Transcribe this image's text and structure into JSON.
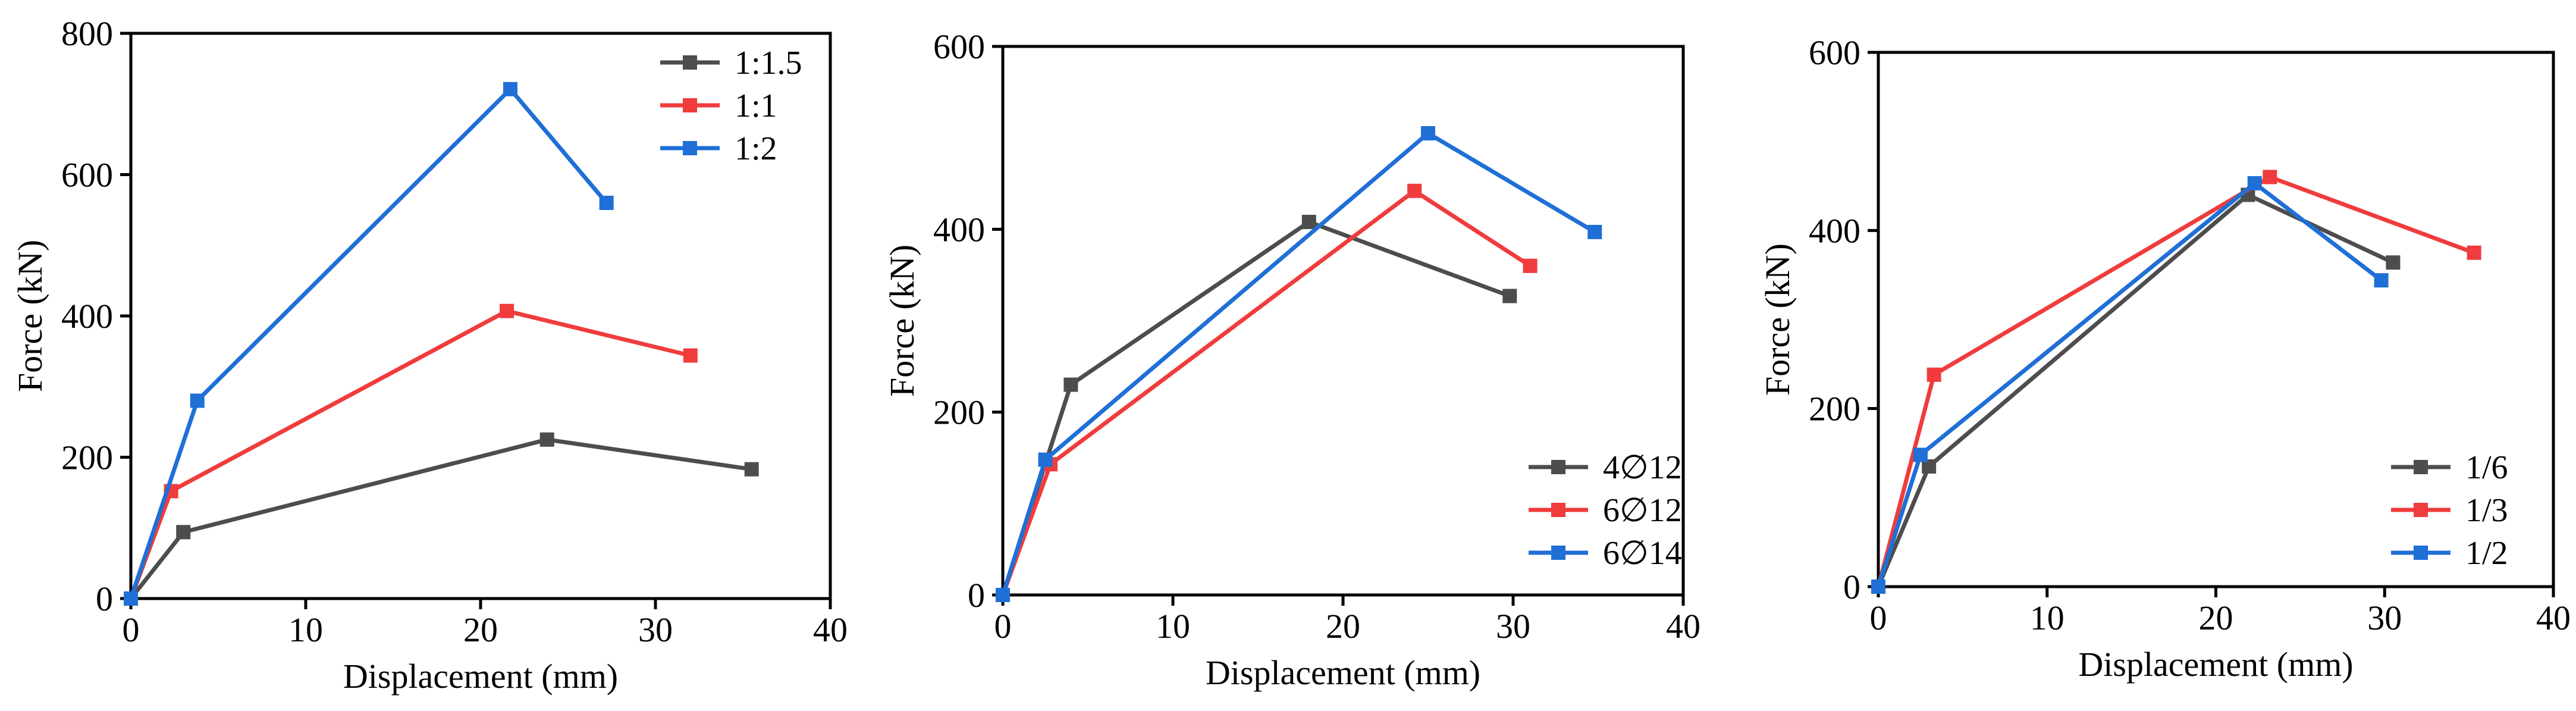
{
  "chart_data": [
    {
      "type": "line",
      "title": "",
      "xlabel": "Displacement (mm)",
      "ylabel": "Force (kN)",
      "xlim": [
        0,
        40
      ],
      "ylim": [
        0,
        800
      ],
      "xticks": [
        "0",
        "10",
        "20",
        "30",
        "40"
      ],
      "yticks": [
        "0",
        "200",
        "400",
        "600",
        "800"
      ],
      "legend_position": "top-right",
      "series": [
        {
          "name": "1:1.5",
          "color": "#4d4d4d",
          "points": [
            [
              0,
              0
            ],
            [
              3.0,
              94
            ],
            [
              23.8,
              225
            ],
            [
              35.5,
              183
            ]
          ]
        },
        {
          "name": "1:1",
          "color": "#f03c3c",
          "points": [
            [
              0,
              0
            ],
            [
              2.3,
              152
            ],
            [
              21.5,
              407
            ],
            [
              32.0,
              344
            ]
          ]
        },
        {
          "name": "1:2",
          "color": "#1f6fd6",
          "points": [
            [
              0,
              0
            ],
            [
              3.8,
              280
            ],
            [
              21.7,
              721
            ],
            [
              27.2,
              560
            ]
          ]
        }
      ]
    },
    {
      "type": "line",
      "title": "",
      "xlabel": "Displacement (mm)",
      "ylabel": "Force (kN)",
      "xlim": [
        0,
        40
      ],
      "ylim": [
        0,
        600
      ],
      "xticks": [
        "0",
        "10",
        "20",
        "30",
        "40"
      ],
      "yticks": [
        "0",
        "200",
        "400",
        "600"
      ],
      "legend_position": "bottom-right",
      "series": [
        {
          "name": "4∅12",
          "color": "#4d4d4d",
          "points": [
            [
              0,
              0
            ],
            [
              4.0,
              230
            ],
            [
              18.0,
              408
            ],
            [
              29.8,
              327
            ]
          ]
        },
        {
          "name": "6∅12",
          "color": "#f03c3c",
          "points": [
            [
              0,
              0
            ],
            [
              2.8,
              143
            ],
            [
              24.2,
              442
            ],
            [
              31.0,
              360
            ]
          ]
        },
        {
          "name": "6∅14",
          "color": "#1f6fd6",
          "points": [
            [
              0,
              0
            ],
            [
              2.5,
              148
            ],
            [
              25.0,
              505
            ],
            [
              34.8,
              397
            ]
          ]
        }
      ]
    },
    {
      "type": "line",
      "title": "",
      "xlabel": "Displacement (mm)",
      "ylabel": "Force (kN)",
      "xlim": [
        0,
        40
      ],
      "ylim": [
        0,
        600
      ],
      "xticks": [
        "0",
        "10",
        "20",
        "30",
        "40"
      ],
      "yticks": [
        "0",
        "200",
        "400",
        "600"
      ],
      "legend_position": "bottom-right",
      "series": [
        {
          "name": "1/6",
          "color": "#4d4d4d",
          "points": [
            [
              0,
              0
            ],
            [
              3.0,
              135
            ],
            [
              21.9,
              440
            ],
            [
              30.5,
              364
            ]
          ]
        },
        {
          "name": "1/3",
          "color": "#f03c3c",
          "points": [
            [
              0,
              0
            ],
            [
              3.3,
              238
            ],
            [
              23.2,
              460
            ],
            [
              35.3,
              375
            ]
          ]
        },
        {
          "name": "1/2",
          "color": "#1f6fd6",
          "points": [
            [
              0,
              0
            ],
            [
              2.5,
              148
            ],
            [
              22.3,
              453
            ],
            [
              29.8,
              344
            ]
          ]
        }
      ]
    }
  ]
}
